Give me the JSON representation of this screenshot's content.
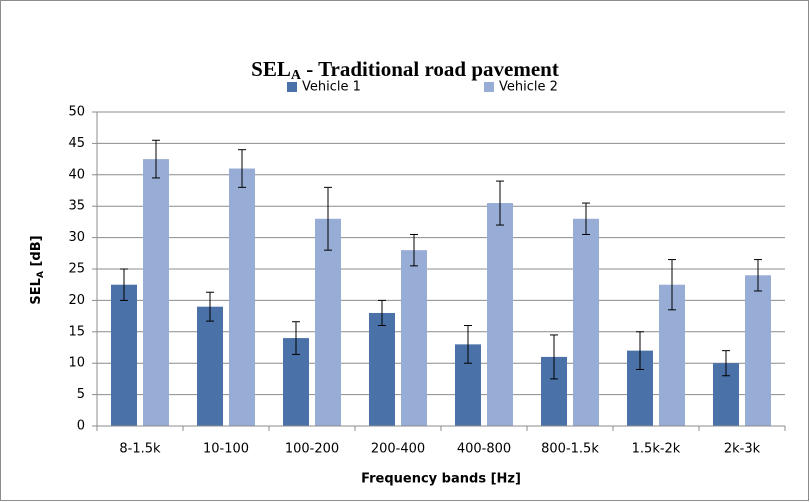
{
  "chart_data": {
    "type": "bar",
    "title_parts": [
      "SEL",
      "A",
      " - Traditional road pavement"
    ],
    "y_label_parts": [
      "SEL",
      "A",
      " [dB]"
    ],
    "x_label": "Frequency bands [Hz]",
    "categories": [
      "8-1.5k",
      "10-100",
      "100-200",
      "200-400",
      "400-800",
      "800-1.5k",
      "1.5k-2k",
      "2k-3k"
    ],
    "series": [
      {
        "name": "Vehicle 1",
        "color": "#4a71a8",
        "values": [
          22.5,
          19,
          14,
          18,
          13,
          11,
          12,
          10
        ],
        "errors": [
          2.5,
          2.3,
          2.6,
          2,
          3,
          3.5,
          3,
          2
        ]
      },
      {
        "name": "Vehicle 2",
        "color": "#97add6",
        "values": [
          42.5,
          41,
          33,
          28,
          35.5,
          33,
          22.5,
          24
        ],
        "errors": [
          3,
          3,
          5,
          2.5,
          3.5,
          2.5,
          4,
          2.5
        ]
      }
    ],
    "ylim": [
      0,
      50
    ],
    "yticks": [
      0,
      5,
      10,
      15,
      20,
      25,
      30,
      35,
      40,
      45,
      50
    ],
    "grid": true,
    "legend": "top"
  }
}
